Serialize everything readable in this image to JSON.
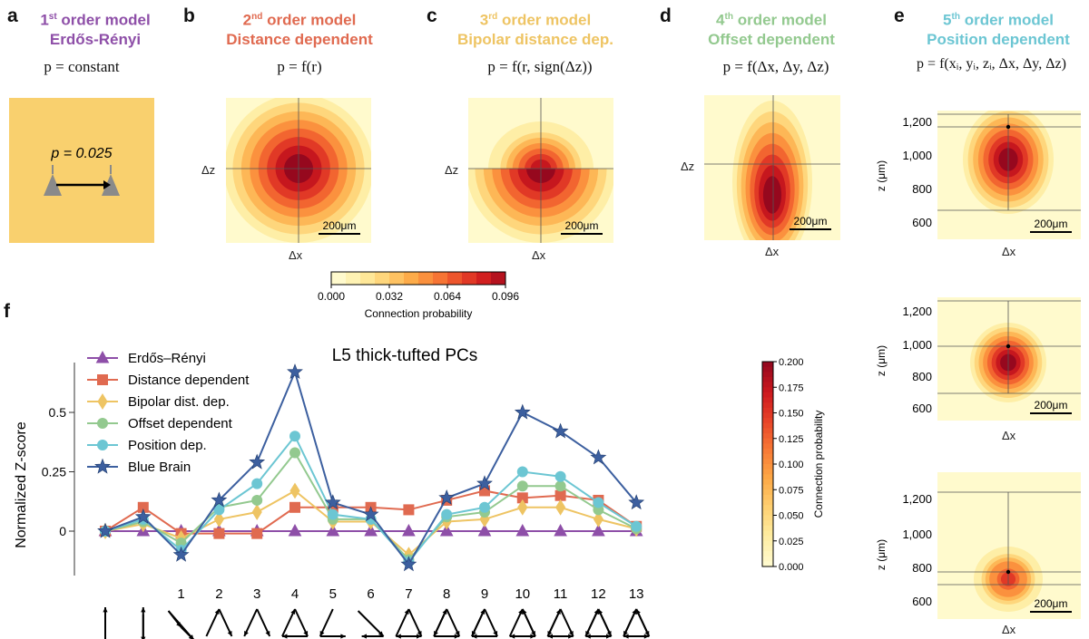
{
  "panel_letters": {
    "a": "a",
    "b": "b",
    "c": "c",
    "d": "d",
    "e": "e",
    "f": "f"
  },
  "models": [
    {
      "ordinal": "1",
      "sup": "st",
      "suffix": "order model",
      "name": "Erdős-Rényi",
      "color": "#8e4fa8",
      "formula": "p = constant"
    },
    {
      "ordinal": "2",
      "sup": "nd",
      "suffix": "order model",
      "name": "Distance dependent",
      "color": "#e06a50",
      "formula": "p = f(r)"
    },
    {
      "ordinal": "3",
      "sup": "rd",
      "suffix": "order model",
      "name": "Bipolar distance dep.",
      "color": "#eec463",
      "formula": "p = f(r, sign(Δz))"
    },
    {
      "ordinal": "4",
      "sup": "th",
      "suffix": "order model",
      "name": "Offset dependent",
      "color": "#93c98f",
      "formula": "p = f(Δx, Δy, Δz)"
    },
    {
      "ordinal": "5",
      "sup": "th",
      "suffix": "order model",
      "name": "Position dependent",
      "color": "#6cc6d3",
      "formula": "p = f(xᵢ, yᵢ, zᵢ, Δx, Δy, Δz)"
    }
  ],
  "panel_a": {
    "p_text": "p = 0.025",
    "bg_color": "#f9d06e"
  },
  "heatmap_labels": {
    "dz": "Δz",
    "dx": "Δx",
    "z_um": "z (μm)",
    "scalebar": "200μm"
  },
  "colorbar_top": {
    "ticks": [
      "0.000",
      "0.032",
      "0.064",
      "0.096"
    ],
    "label": "Connection probability",
    "max": 0.096
  },
  "colorbar_right": {
    "ticks": [
      "0.200",
      "0.175",
      "0.150",
      "0.125",
      "0.100",
      "0.075",
      "0.050",
      "0.025",
      "0.000"
    ],
    "label": "Connection probability",
    "max": 0.2
  },
  "panel_e_yticks": [
    "1,200",
    "1,000",
    "800",
    "600"
  ],
  "chart_data": {
    "type": "line",
    "title": "L5 thick-tufted PCs",
    "ylabel": "Normalized Z-score",
    "xlabel": "",
    "categories": [
      "",
      "",
      "1",
      "2",
      "3",
      "4",
      "5",
      "6",
      "7",
      "8",
      "9",
      "10",
      "11",
      "12",
      "13"
    ],
    "yticks": [
      "0.5",
      "0.25",
      "0"
    ],
    "ylim": [
      -0.19,
      0.72
    ],
    "legend_position": "top-left",
    "series": [
      {
        "name": "Erdős–Rényi",
        "color": "#8e4fa8",
        "marker": "triangle",
        "values": [
          0,
          0,
          0,
          0,
          0,
          0,
          0,
          0,
          0,
          0,
          0,
          0,
          0,
          0,
          0
        ]
      },
      {
        "name": "Distance dependent",
        "color": "#e06a50",
        "marker": "square",
        "values": [
          0,
          0.1,
          -0.01,
          -0.01,
          -0.01,
          0.1,
          0.1,
          0.1,
          0.09,
          0.13,
          0.17,
          0.14,
          0.15,
          0.13,
          0.02
        ]
      },
      {
        "name": "Bipolar dist. dep.",
        "color": "#eec463",
        "marker": "diamond",
        "values": [
          0,
          0.03,
          -0.03,
          0.05,
          0.08,
          0.17,
          0.04,
          0.04,
          -0.1,
          0.04,
          0.05,
          0.1,
          0.1,
          0.05,
          0.01
        ]
      },
      {
        "name": "Offset dependent",
        "color": "#93c98f",
        "marker": "circle",
        "values": [
          0,
          0.04,
          -0.05,
          0.1,
          0.13,
          0.33,
          0.05,
          0.05,
          -0.12,
          0.06,
          0.08,
          0.19,
          0.19,
          0.09,
          0.01
        ]
      },
      {
        "name": "Position dep.",
        "color": "#6cc6d3",
        "marker": "circle",
        "values": [
          0,
          0.05,
          -0.08,
          0.09,
          0.2,
          0.4,
          0.07,
          0.05,
          -0.13,
          0.07,
          0.1,
          0.25,
          0.23,
          0.12,
          0.02
        ]
      },
      {
        "name": "Blue Brain",
        "color": "#3c5f9f",
        "marker": "star",
        "values": [
          0,
          0.06,
          -0.1,
          0.13,
          0.29,
          0.67,
          0.12,
          0.07,
          -0.14,
          0.14,
          0.2,
          0.5,
          0.42,
          0.31,
          0.12
        ]
      }
    ]
  }
}
